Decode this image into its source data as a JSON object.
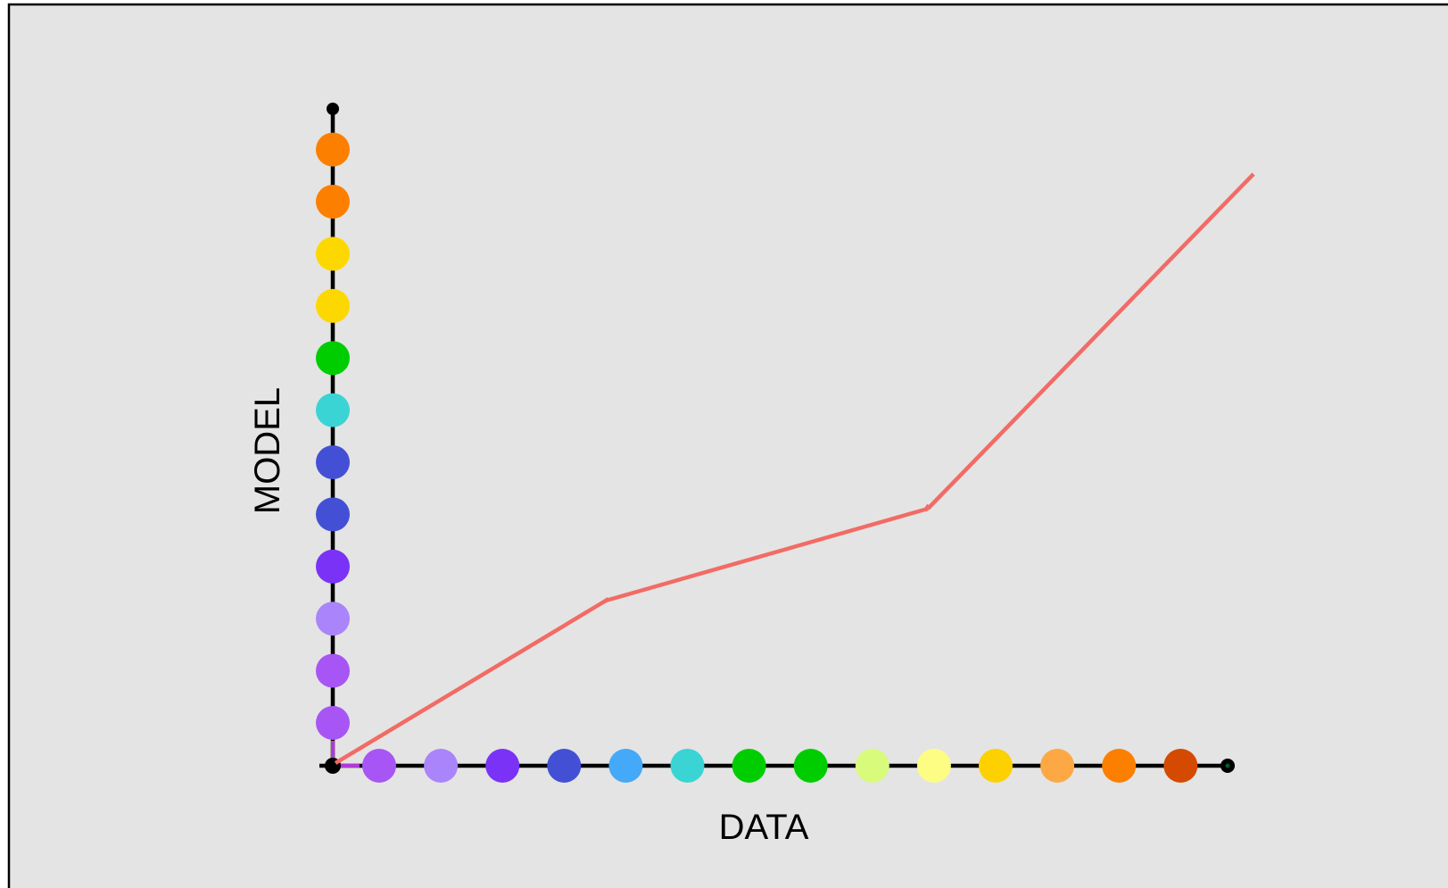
{
  "labels": {
    "x_axis": "DATA",
    "y_axis": "MODEL"
  },
  "colors": {
    "background": "#e4e4e4",
    "frame": "#000000",
    "axis": "#000000",
    "curve": "#f26b65",
    "origin_link": "#b13ad6"
  },
  "x_axis_dots": [
    "#a755f5",
    "#aa84fa",
    "#7a33f6",
    "#4350d6",
    "#44a9f9",
    "#3ad4d4",
    "#00cd00",
    "#00cd00",
    "#d8fb7c",
    "#fdfd84",
    "#fdd100",
    "#fca945",
    "#fc7f00",
    "#d44a00"
  ],
  "y_axis_dots": [
    "#a755f5",
    "#a755f5",
    "#aa84fa",
    "#7a33f6",
    "#4350d6",
    "#4350d6",
    "#3ad4d4",
    "#00cd00",
    "#fdd800",
    "#fdd800",
    "#fc7f00",
    "#fc7f00"
  ],
  "curve_kinks": 2
}
